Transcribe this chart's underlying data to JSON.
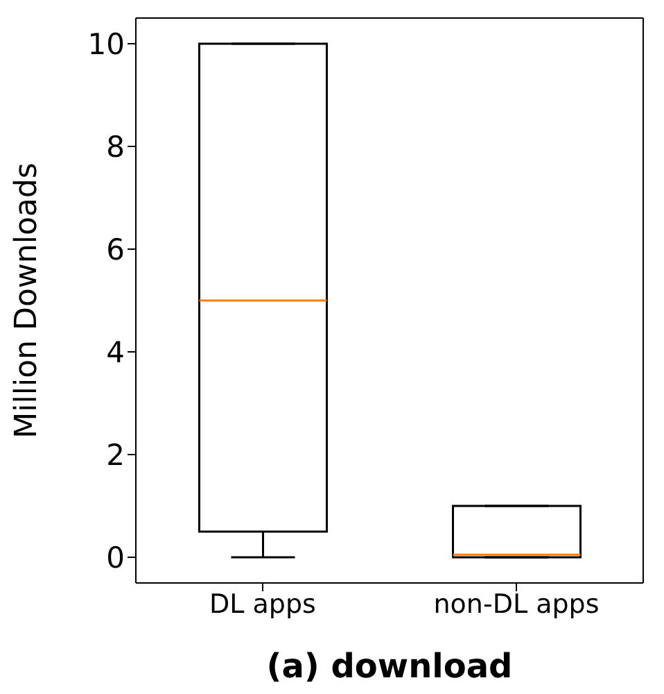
{
  "chart_data": {
    "type": "box",
    "title": "(a) download",
    "ylabel": "Million Downloads",
    "categories": [
      "DL apps",
      "non-DL apps"
    ],
    "series": [
      {
        "color": "#000000",
        "boxes": [
          {
            "low": 0,
            "q1": 0.5,
            "median": 5,
            "q3": 10,
            "high": 10
          },
          {
            "low": 0,
            "q1": 0,
            "median": 0.05,
            "q3": 1,
            "high": 1
          }
        ]
      }
    ],
    "ylim": [
      -0.5,
      10.5
    ],
    "yticks": [
      0,
      2,
      4,
      6,
      8,
      10
    ],
    "grid": false,
    "legend": false
  }
}
